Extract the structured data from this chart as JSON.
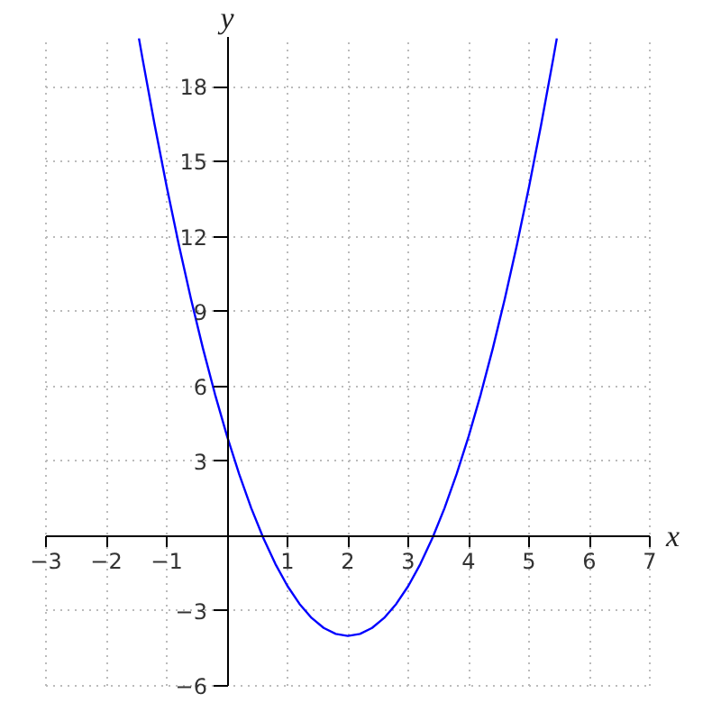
{
  "chart_data": {
    "type": "line",
    "xlabel": "x",
    "ylabel": "y",
    "x": [
      -1.46,
      -1.4,
      -1.2,
      -1.0,
      -0.8,
      -0.6,
      -0.4,
      -0.2,
      0,
      0.2,
      0.4,
      0.6,
      0.8,
      1.0,
      1.2,
      1.4,
      1.6,
      1.8,
      2.0,
      2.2,
      2.4,
      2.6,
      2.8,
      3.0,
      3.2,
      3.4,
      3.6,
      3.8,
      4.0,
      4.2,
      4.4,
      4.6,
      4.8,
      5.0,
      5.2,
      5.4,
      5.46
    ],
    "series": [
      {
        "color": "#0000ff",
        "values": [
          19.94,
          19.12,
          16.48,
          14,
          11.68,
          9.52,
          7.52,
          5.68,
          4,
          2.48,
          1.12,
          -0.08,
          -1.12,
          -2,
          -2.72,
          -3.28,
          -3.68,
          -3.92,
          -4,
          -3.92,
          -3.68,
          -3.28,
          -2.72,
          -2,
          -1.12,
          -0.08,
          1.12,
          2.48,
          4,
          5.68,
          7.52,
          9.52,
          11.68,
          14,
          16.48,
          19.12,
          19.94
        ]
      }
    ],
    "xlim": [
      -3,
      7
    ],
    "ylim": [
      -6,
      20
    ],
    "xticks": [
      -3,
      -2,
      -1,
      1,
      2,
      3,
      4,
      5,
      6,
      7
    ],
    "yticks": [
      -6,
      -3,
      3,
      6,
      9,
      12,
      15,
      18
    ],
    "grid": true
  }
}
